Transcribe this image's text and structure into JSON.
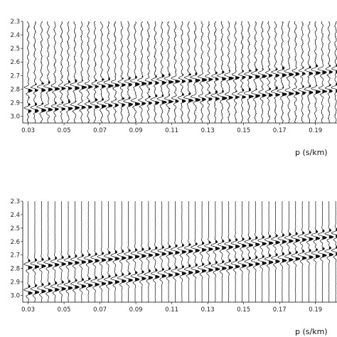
{
  "chart_data": [
    {
      "type": "seismic-wiggle",
      "ylabel_ticks": [
        "2.3",
        "2.4",
        "2.5",
        "2.6",
        "2.7",
        "2.8",
        "2.9",
        "3.0"
      ],
      "ylim": [
        2.3,
        3.05
      ],
      "xlabel": "p (s/km)",
      "x_ticks": [
        "0.03",
        "0.05",
        "0.07",
        "0.09",
        "0.11",
        "0.13",
        "0.15",
        "0.17",
        "0.19"
      ],
      "xlim": [
        0.027,
        0.202
      ],
      "trace_count": 48,
      "style": "noisy",
      "events": [
        {
          "p": [
            0.03,
            0.2
          ],
          "t": [
            2.8,
            2.66
          ]
        },
        {
          "p": [
            0.03,
            0.2
          ],
          "t": [
            2.95,
            2.8
          ]
        }
      ]
    },
    {
      "type": "seismic-wiggle",
      "ylabel_ticks": [
        "2.3",
        "2.4",
        "2.5",
        "2.6",
        "2.7",
        "2.8",
        "2.9",
        "3.0"
      ],
      "ylim": [
        2.3,
        3.05
      ],
      "xlabel": "p (s/km)",
      "x_ticks": [
        "0.03",
        "0.05",
        "0.07",
        "0.09",
        "0.11",
        "0.13",
        "0.15",
        "0.17",
        "0.19"
      ],
      "xlim": [
        0.027,
        0.202
      ],
      "trace_count": 48,
      "style": "clean",
      "events": [
        {
          "p": [
            0.03,
            0.2
          ],
          "t": [
            2.78,
            2.55
          ]
        },
        {
          "p": [
            0.03,
            0.2
          ],
          "t": [
            2.97,
            2.68
          ]
        }
      ]
    }
  ]
}
